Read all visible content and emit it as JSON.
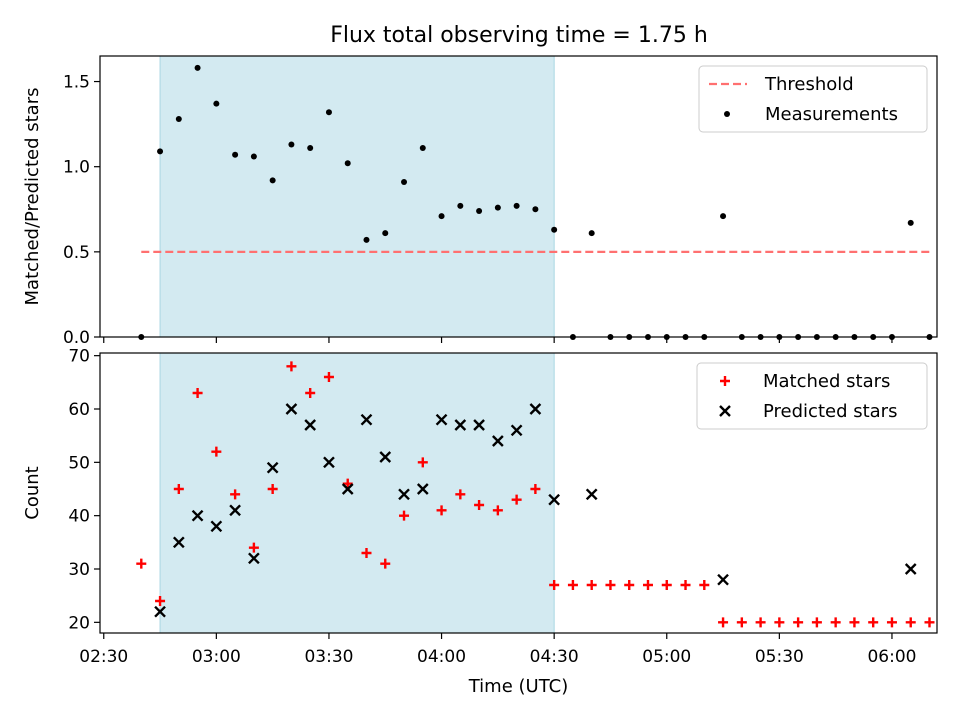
{
  "figure": {
    "title": "Flux total observing time = 1.75 h"
  },
  "chart_data": [
    {
      "type": "scatter",
      "ylabel": "Matched/Predicted stars",
      "ylim": [
        0,
        1.65
      ],
      "yticks": [
        "0.0",
        "0.5",
        "1.0",
        "1.5"
      ],
      "ytick_values": [
        0,
        0.5,
        1.0,
        1.5
      ],
      "xlim": [
        "02:29",
        "06:12"
      ],
      "grid": false,
      "legend_position": "top-right",
      "shaded_span": {
        "start": "02:45",
        "end": "04:30",
        "color": "#d3eaf1"
      },
      "threshold": {
        "name": "Threshold",
        "y": 0.5,
        "x_start": "02:40",
        "x_end": "06:10",
        "color": "#ff7070"
      },
      "series": [
        {
          "name": "Measurements",
          "marker": "dot",
          "color": "#000000",
          "points": [
            [
              "02:40",
              0.0
            ],
            [
              "02:45",
              1.09
            ],
            [
              "02:50",
              1.28
            ],
            [
              "02:55",
              1.58
            ],
            [
              "03:00",
              1.37
            ],
            [
              "03:05",
              1.07
            ],
            [
              "03:10",
              1.06
            ],
            [
              "03:15",
              0.92
            ],
            [
              "03:20",
              1.13
            ],
            [
              "03:25",
              1.11
            ],
            [
              "03:30",
              1.32
            ],
            [
              "03:35",
              1.02
            ],
            [
              "03:40",
              0.57
            ],
            [
              "03:45",
              0.61
            ],
            [
              "03:50",
              0.91
            ],
            [
              "03:55",
              1.11
            ],
            [
              "04:00",
              0.71
            ],
            [
              "04:05",
              0.77
            ],
            [
              "04:10",
              0.74
            ],
            [
              "04:15",
              0.76
            ],
            [
              "04:20",
              0.77
            ],
            [
              "04:25",
              0.75
            ],
            [
              "04:30",
              0.63
            ],
            [
              "04:35",
              0.0
            ],
            [
              "04:40",
              0.61
            ],
            [
              "04:45",
              0.0
            ],
            [
              "04:50",
              0.0
            ],
            [
              "04:55",
              0.0
            ],
            [
              "05:00",
              0.0
            ],
            [
              "05:05",
              0.0
            ],
            [
              "05:10",
              0.0
            ],
            [
              "05:15",
              0.71
            ],
            [
              "05:20",
              0.0
            ],
            [
              "05:25",
              0.0
            ],
            [
              "05:30",
              0.0
            ],
            [
              "05:35",
              0.0
            ],
            [
              "05:40",
              0.0
            ],
            [
              "05:45",
              0.0
            ],
            [
              "05:50",
              0.0
            ],
            [
              "05:55",
              0.0
            ],
            [
              "06:00",
              0.0
            ],
            [
              "06:05",
              0.67
            ],
            [
              "06:10",
              0.0
            ]
          ]
        }
      ],
      "legend": [
        {
          "label": "Threshold",
          "kind": "dashed-line",
          "color": "#ff7070"
        },
        {
          "label": "Measurements",
          "kind": "dot",
          "color": "#000000"
        }
      ]
    },
    {
      "type": "scatter",
      "xlabel": "Time (UTC)",
      "ylabel": "Count",
      "ylim": [
        18,
        70.5
      ],
      "yticks": [
        "20",
        "30",
        "40",
        "50",
        "60",
        "70"
      ],
      "ytick_values": [
        20,
        30,
        40,
        50,
        60,
        70
      ],
      "xlim": [
        "02:29",
        "06:12"
      ],
      "xticks": [
        "02:30",
        "03:00",
        "03:30",
        "04:00",
        "04:30",
        "05:00",
        "05:30",
        "06:00"
      ],
      "grid": false,
      "legend_position": "top-right",
      "shaded_span": {
        "start": "02:45",
        "end": "04:30",
        "color": "#d3eaf1"
      },
      "series": [
        {
          "name": "Matched stars",
          "marker": "plus",
          "color": "#ff0000",
          "points": [
            [
              "02:40",
              31
            ],
            [
              "02:45",
              24
            ],
            [
              "02:50",
              45
            ],
            [
              "02:55",
              63
            ],
            [
              "03:00",
              52
            ],
            [
              "03:05",
              44
            ],
            [
              "03:10",
              34
            ],
            [
              "03:15",
              45
            ],
            [
              "03:20",
              68
            ],
            [
              "03:25",
              63
            ],
            [
              "03:30",
              66
            ],
            [
              "03:35",
              46
            ],
            [
              "03:40",
              33
            ],
            [
              "03:45",
              31
            ],
            [
              "03:50",
              40
            ],
            [
              "03:55",
              50
            ],
            [
              "04:00",
              41
            ],
            [
              "04:05",
              44
            ],
            [
              "04:10",
              42
            ],
            [
              "04:15",
              41
            ],
            [
              "04:20",
              43
            ],
            [
              "04:25",
              45
            ],
            [
              "04:30",
              27
            ],
            [
              "04:35",
              27
            ],
            [
              "04:40",
              27
            ],
            [
              "04:45",
              27
            ],
            [
              "04:50",
              27
            ],
            [
              "04:55",
              27
            ],
            [
              "05:00",
              27
            ],
            [
              "05:05",
              27
            ],
            [
              "05:10",
              27
            ],
            [
              "05:15",
              20
            ],
            [
              "05:20",
              20
            ],
            [
              "05:25",
              20
            ],
            [
              "05:30",
              20
            ],
            [
              "05:35",
              20
            ],
            [
              "05:40",
              20
            ],
            [
              "05:45",
              20
            ],
            [
              "05:50",
              20
            ],
            [
              "05:55",
              20
            ],
            [
              "06:00",
              20
            ],
            [
              "06:05",
              20
            ],
            [
              "06:10",
              20
            ]
          ]
        },
        {
          "name": "Predicted stars",
          "marker": "cross",
          "color": "#000000",
          "points": [
            [
              "02:45",
              22
            ],
            [
              "02:50",
              35
            ],
            [
              "02:55",
              40
            ],
            [
              "03:00",
              38
            ],
            [
              "03:05",
              41
            ],
            [
              "03:10",
              32
            ],
            [
              "03:15",
              49
            ],
            [
              "03:20",
              60
            ],
            [
              "03:25",
              57
            ],
            [
              "03:30",
              50
            ],
            [
              "03:35",
              45
            ],
            [
              "03:40",
              58
            ],
            [
              "03:45",
              51
            ],
            [
              "03:50",
              44
            ],
            [
              "03:55",
              45
            ],
            [
              "04:00",
              58
            ],
            [
              "04:05",
              57
            ],
            [
              "04:10",
              57
            ],
            [
              "04:15",
              54
            ],
            [
              "04:20",
              56
            ],
            [
              "04:25",
              60
            ],
            [
              "04:30",
              43
            ],
            [
              "04:40",
              44
            ],
            [
              "05:15",
              28
            ],
            [
              "06:05",
              30
            ]
          ]
        }
      ],
      "legend": [
        {
          "label": "Matched stars",
          "kind": "plus",
          "color": "#ff0000"
        },
        {
          "label": "Predicted stars",
          "kind": "cross",
          "color": "#000000"
        }
      ]
    }
  ]
}
